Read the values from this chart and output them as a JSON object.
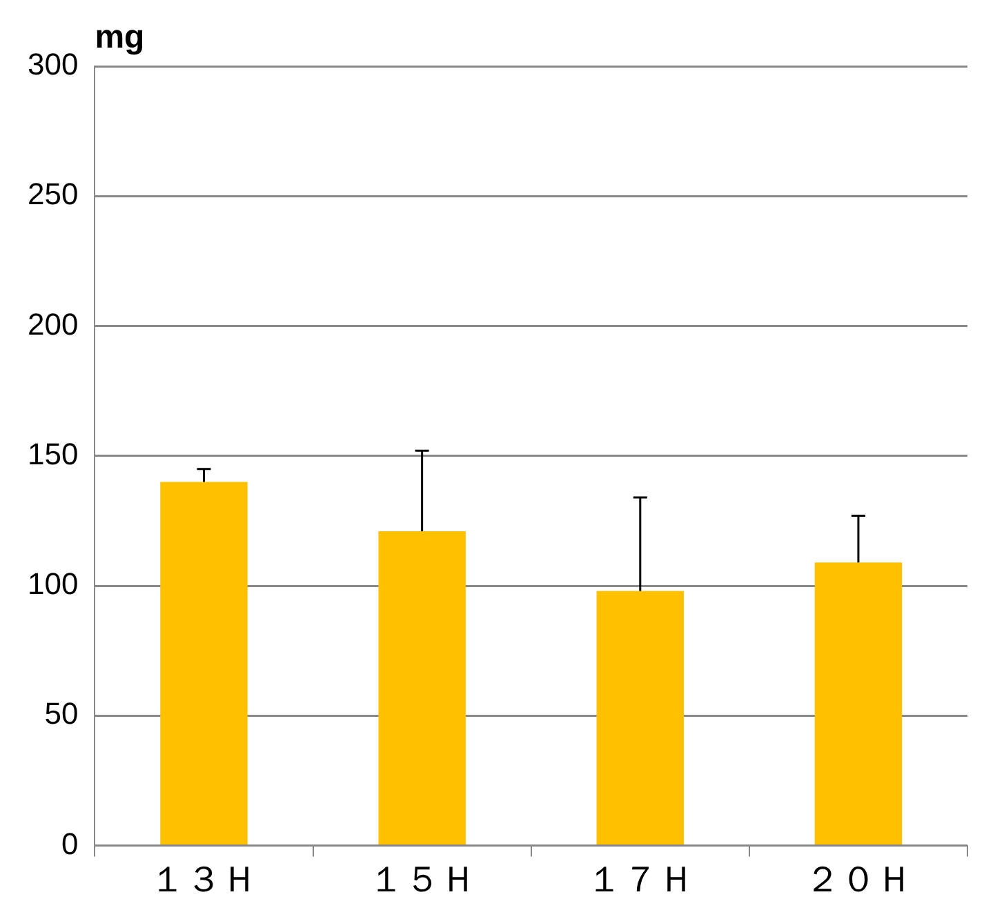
{
  "chart_data": {
    "type": "bar",
    "ylabel": "mg",
    "categories": [
      "１３Ｈ",
      "１５Ｈ",
      "１７Ｈ",
      "２０Ｈ"
    ],
    "values": [
      140,
      121,
      98,
      109
    ],
    "errors": [
      [
        140,
        145
      ],
      [
        121,
        152
      ],
      [
        98,
        134
      ],
      [
        109,
        127
      ]
    ],
    "color": "#ffc000",
    "ylim": [
      0,
      300
    ],
    "yticks": [
      0,
      50,
      100,
      150,
      200,
      250,
      300
    ],
    "grid": "y",
    "legend": false
  }
}
